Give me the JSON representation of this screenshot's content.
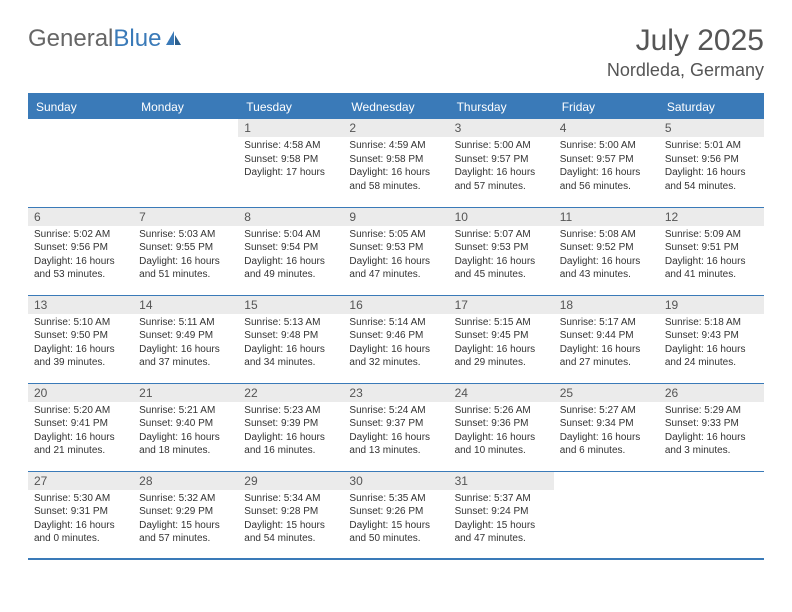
{
  "logo": {
    "part1": "General",
    "part2": "Blue"
  },
  "title": "July 2025",
  "location": "Nordleda, Germany",
  "colors": {
    "header_bg": "#3a7ab8",
    "header_text": "#ffffff",
    "daynum_bg": "#ebebeb",
    "text": "#333333",
    "border": "#3a7ab8"
  },
  "weekdays": [
    "Sunday",
    "Monday",
    "Tuesday",
    "Wednesday",
    "Thursday",
    "Friday",
    "Saturday"
  ],
  "days": {
    "1": {
      "sunrise": "4:58 AM",
      "sunset": "9:58 PM",
      "daylight": "17 hours"
    },
    "2": {
      "sunrise": "4:59 AM",
      "sunset": "9:58 PM",
      "daylight": "16 hours and 58 minutes."
    },
    "3": {
      "sunrise": "5:00 AM",
      "sunset": "9:57 PM",
      "daylight": "16 hours and 57 minutes."
    },
    "4": {
      "sunrise": "5:00 AM",
      "sunset": "9:57 PM",
      "daylight": "16 hours and 56 minutes."
    },
    "5": {
      "sunrise": "5:01 AM",
      "sunset": "9:56 PM",
      "daylight": "16 hours and 54 minutes."
    },
    "6": {
      "sunrise": "5:02 AM",
      "sunset": "9:56 PM",
      "daylight": "16 hours and 53 minutes."
    },
    "7": {
      "sunrise": "5:03 AM",
      "sunset": "9:55 PM",
      "daylight": "16 hours and 51 minutes."
    },
    "8": {
      "sunrise": "5:04 AM",
      "sunset": "9:54 PM",
      "daylight": "16 hours and 49 minutes."
    },
    "9": {
      "sunrise": "5:05 AM",
      "sunset": "9:53 PM",
      "daylight": "16 hours and 47 minutes."
    },
    "10": {
      "sunrise": "5:07 AM",
      "sunset": "9:53 PM",
      "daylight": "16 hours and 45 minutes."
    },
    "11": {
      "sunrise": "5:08 AM",
      "sunset": "9:52 PM",
      "daylight": "16 hours and 43 minutes."
    },
    "12": {
      "sunrise": "5:09 AM",
      "sunset": "9:51 PM",
      "daylight": "16 hours and 41 minutes."
    },
    "13": {
      "sunrise": "5:10 AM",
      "sunset": "9:50 PM",
      "daylight": "16 hours and 39 minutes."
    },
    "14": {
      "sunrise": "5:11 AM",
      "sunset": "9:49 PM",
      "daylight": "16 hours and 37 minutes."
    },
    "15": {
      "sunrise": "5:13 AM",
      "sunset": "9:48 PM",
      "daylight": "16 hours and 34 minutes."
    },
    "16": {
      "sunrise": "5:14 AM",
      "sunset": "9:46 PM",
      "daylight": "16 hours and 32 minutes."
    },
    "17": {
      "sunrise": "5:15 AM",
      "sunset": "9:45 PM",
      "daylight": "16 hours and 29 minutes."
    },
    "18": {
      "sunrise": "5:17 AM",
      "sunset": "9:44 PM",
      "daylight": "16 hours and 27 minutes."
    },
    "19": {
      "sunrise": "5:18 AM",
      "sunset": "9:43 PM",
      "daylight": "16 hours and 24 minutes."
    },
    "20": {
      "sunrise": "5:20 AM",
      "sunset": "9:41 PM",
      "daylight": "16 hours and 21 minutes."
    },
    "21": {
      "sunrise": "5:21 AM",
      "sunset": "9:40 PM",
      "daylight": "16 hours and 18 minutes."
    },
    "22": {
      "sunrise": "5:23 AM",
      "sunset": "9:39 PM",
      "daylight": "16 hours and 16 minutes."
    },
    "23": {
      "sunrise": "5:24 AM",
      "sunset": "9:37 PM",
      "daylight": "16 hours and 13 minutes."
    },
    "24": {
      "sunrise": "5:26 AM",
      "sunset": "9:36 PM",
      "daylight": "16 hours and 10 minutes."
    },
    "25": {
      "sunrise": "5:27 AM",
      "sunset": "9:34 PM",
      "daylight": "16 hours and 6 minutes."
    },
    "26": {
      "sunrise": "5:29 AM",
      "sunset": "9:33 PM",
      "daylight": "16 hours and 3 minutes."
    },
    "27": {
      "sunrise": "5:30 AM",
      "sunset": "9:31 PM",
      "daylight": "16 hours and 0 minutes."
    },
    "28": {
      "sunrise": "5:32 AM",
      "sunset": "9:29 PM",
      "daylight": "15 hours and 57 minutes."
    },
    "29": {
      "sunrise": "5:34 AM",
      "sunset": "9:28 PM",
      "daylight": "15 hours and 54 minutes."
    },
    "30": {
      "sunrise": "5:35 AM",
      "sunset": "9:26 PM",
      "daylight": "15 hours and 50 minutes."
    },
    "31": {
      "sunrise": "5:37 AM",
      "sunset": "9:24 PM",
      "daylight": "15 hours and 47 minutes."
    }
  },
  "layout": {
    "first_day_column": 2,
    "num_days": 31,
    "rows": 5,
    "cols": 7
  },
  "labels": {
    "sunrise": "Sunrise:",
    "sunset": "Sunset:",
    "daylight": "Daylight:"
  }
}
